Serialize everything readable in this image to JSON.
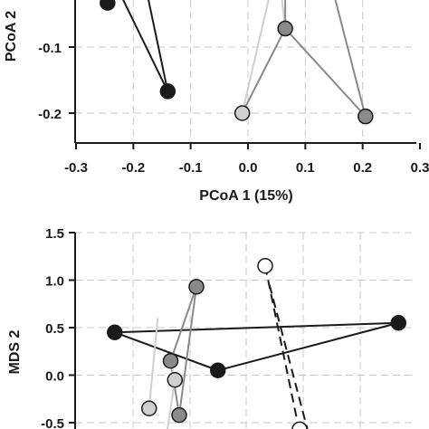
{
  "chart_data": [
    {
      "type": "scatter",
      "xlabel": "PCoA 1 (15%)",
      "ylabel": "PCoA 2",
      "xlim": [
        -0.3,
        0.3
      ],
      "ylim": [
        -0.25,
        0.05
      ],
      "xticks": [
        -0.3,
        -0.2,
        -0.1,
        0.0,
        0.1,
        0.2,
        0.3
      ],
      "xtick_labels": [
        "-0.3",
        "-0.2",
        "-0.1",
        "0.0",
        "0.1",
        "0.2",
        "0.3"
      ],
      "yticks": [
        -0.2,
        -0.1
      ],
      "ytick_labels": [
        "-0.2",
        "-0.1"
      ],
      "grid": true,
      "series": [
        {
          "color": "#1a1a1a",
          "line": "solid",
          "segments": [
            [
              [
                -0.245,
                0.02
              ],
              [
                -0.14,
                -0.167
              ]
            ],
            [
              [
                -0.245,
                0.02
              ],
              [
                -0.215,
                0.08
              ]
            ],
            [
              [
                -0.14,
                -0.167
              ],
              [
                -0.2,
                0.08
              ]
            ]
          ],
          "points": [
            [
              -0.245,
              -0.033
            ],
            [
              -0.14,
              -0.167
            ]
          ]
        },
        {
          "color": "#cfcfcf",
          "line": "solid",
          "segments": [
            [
              [
                -0.01,
                -0.2
              ],
              [
                0.065,
                0.08
              ]
            ],
            [
              [
                0.045,
                0.08
              ],
              [
                0.065,
                -0.072
              ]
            ]
          ],
          "points": [
            [
              -0.01,
              -0.2
            ]
          ]
        },
        {
          "color": "#8a8a8a",
          "line": "solid",
          "segments": [
            [
              [
                0.065,
                -0.072
              ],
              [
                0.065,
                0.08
              ]
            ],
            [
              [
                0.065,
                -0.072
              ],
              [
                0.205,
                -0.205
              ]
            ],
            [
              [
                0.205,
                -0.205
              ],
              [
                0.12,
                0.08
              ]
            ],
            [
              [
                -0.01,
                -0.2
              ],
              [
                0.065,
                -0.072
              ]
            ]
          ],
          "points": [
            [
              0.065,
              -0.072
            ],
            [
              0.205,
              -0.205
            ]
          ]
        }
      ]
    },
    {
      "type": "scatter",
      "xlabel": "",
      "ylabel": "MDS 2",
      "ylim": [
        -0.6,
        1.5
      ],
      "yticks": [
        -0.5,
        0.0,
        0.5,
        1.0,
        1.5
      ],
      "ytick_labels": [
        "-0.5",
        "0.0",
        "0.5",
        "1.0",
        "1.5"
      ],
      "grid": true,
      "series": [
        {
          "color": "#1a1a1a",
          "line": "solid",
          "segments": [
            [
              [
                -1.15,
                0.45
              ],
              [
                2.15,
                0.55
              ]
            ],
            [
              [
                -1.15,
                0.45
              ],
              [
                0.05,
                0.05
              ]
            ],
            [
              [
                0.05,
                0.05
              ],
              [
                2.15,
                0.55
              ]
            ]
          ],
          "points": [
            [
              -1.15,
              0.45
            ],
            [
              0.05,
              0.05
            ],
            [
              2.15,
              0.55
            ]
          ]
        },
        {
          "color": "#8a8a8a",
          "line": "solid",
          "segments": [
            [
              [
                -0.5,
                0.15
              ],
              [
                -0.2,
                0.93
              ]
            ],
            [
              [
                -0.2,
                0.93
              ],
              [
                -0.4,
                -0.42
              ]
            ],
            [
              [
                -0.4,
                -0.42
              ],
              [
                -0.5,
                0.15
              ]
            ]
          ],
          "points": [
            [
              -0.5,
              0.15
            ],
            [
              -0.2,
              0.93
            ],
            [
              -0.4,
              -0.42
            ]
          ]
        },
        {
          "color": "#cfcfcf",
          "line": "solid",
          "segments": [
            [
              [
                -0.75,
                -0.35
              ],
              [
                -0.65,
                0.6
              ]
            ],
            [
              [
                -0.45,
                -0.05
              ],
              [
                -0.55,
                -0.65
              ]
            ],
            [
              [
                -0.45,
                -0.05
              ],
              [
                -0.5,
                0.15
              ]
            ]
          ],
          "points": [
            [
              -0.75,
              -0.35
            ],
            [
              -0.45,
              -0.05
            ]
          ]
        },
        {
          "color": "#1a1a1a",
          "line": "dashed",
          "fill": "#ffffff",
          "segments": [
            [
              [
                0.6,
                1.15
              ],
              [
                1.0,
                -0.6
              ]
            ],
            [
              [
                0.65,
                0.95
              ],
              [
                1.1,
                -0.6
              ]
            ]
          ],
          "points": [
            [
              0.6,
              1.15
            ],
            [
              1.0,
              -0.57
            ]
          ]
        }
      ]
    }
  ]
}
